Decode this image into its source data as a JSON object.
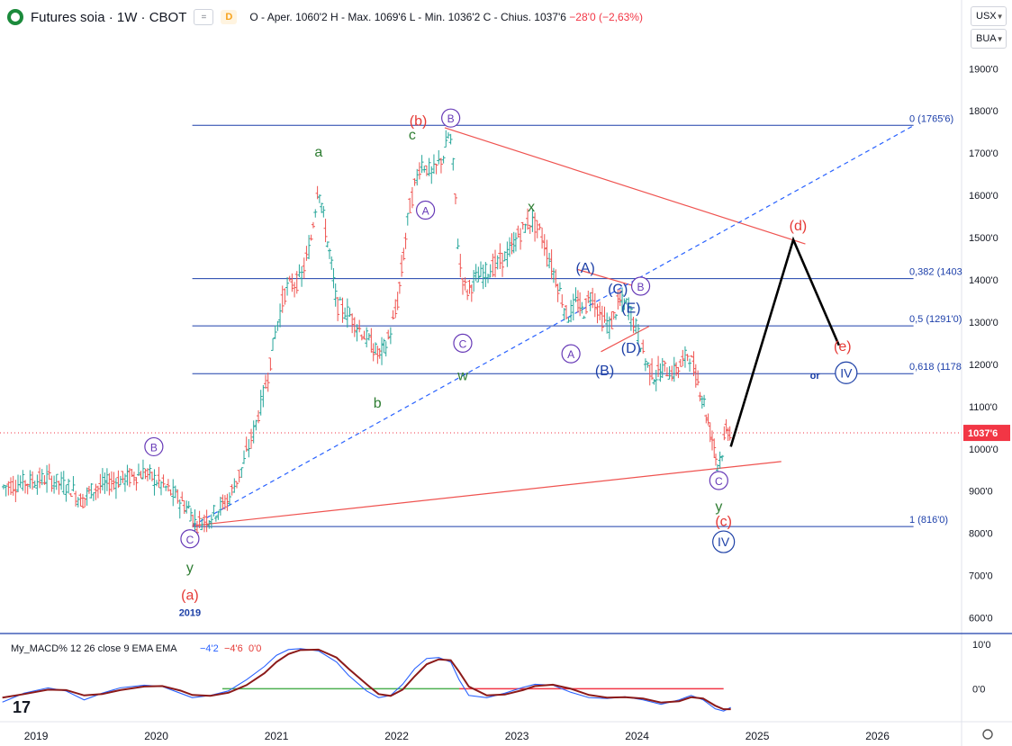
{
  "header": {
    "symbol": "Futures soia · 1W · CBOT",
    "eye_label": "=",
    "badge": "D",
    "ohlc_prefix": "O - Aper. 1060'2 H - Max. 1069'6 L - Min. 1036'2 C - Chius. 1037'6",
    "ohlc_change": "−28'0 (−2,63%)"
  },
  "controls": {
    "currency": "USX",
    "unit": "BUA"
  },
  "colors": {
    "up": "#26a69a",
    "down": "#ef5350",
    "purple": "#673ab7",
    "blue": "#1c3fa6",
    "green": "#2e7d32",
    "red": "#e53935",
    "fib": "#1c3faa",
    "macd": "#2962ff",
    "signal": "#8b1a1a"
  },
  "chart_data": {
    "type": "line",
    "title": "Futures soia · 1W · CBOT",
    "price_tick_labels": [
      "1900'0",
      "1800'0",
      "1700'0",
      "1600'0",
      "1500'0",
      "1400'0",
      "1300'0",
      "1200'0",
      "1100'0",
      "1000'0",
      "900'0",
      "800'0",
      "700'0",
      "600'0"
    ],
    "price_ticks": [
      1900,
      1800,
      1700,
      1600,
      1500,
      1400,
      1300,
      1200,
      1100,
      1000,
      900,
      800,
      700,
      600
    ],
    "ylim": [
      565,
      1990
    ],
    "xlim": [
      2018.7,
      2026.7
    ],
    "x_tick_labels": [
      "2019",
      "2020",
      "2021",
      "2022",
      "2023",
      "2024",
      "2025",
      "2026"
    ],
    "x_ticks": [
      2019,
      2020,
      2021,
      2022,
      2023,
      2024,
      2025,
      2026
    ],
    "last_price_label": "1037'6",
    "last_price": 1037.75,
    "price_path": [
      [
        2018.72,
        910
      ],
      [
        2018.9,
        920
      ],
      [
        2019.1,
        930
      ],
      [
        2019.3,
        905
      ],
      [
        2019.38,
        875
      ],
      [
        2019.45,
        900
      ],
      [
        2019.6,
        920
      ],
      [
        2019.75,
        930
      ],
      [
        2019.9,
        945
      ],
      [
        2020.05,
        915
      ],
      [
        2020.15,
        890
      ],
      [
        2020.28,
        855
      ],
      [
        2020.33,
        820
      ],
      [
        2020.45,
        840
      ],
      [
        2020.6,
        880
      ],
      [
        2020.72,
        960
      ],
      [
        2020.82,
        1050
      ],
      [
        2020.92,
        1160
      ],
      [
        2021.0,
        1290
      ],
      [
        2021.08,
        1380
      ],
      [
        2021.2,
        1400
      ],
      [
        2021.28,
        1480
      ],
      [
        2021.35,
        1630
      ],
      [
        2021.4,
        1530
      ],
      [
        2021.45,
        1450
      ],
      [
        2021.5,
        1340
      ],
      [
        2021.6,
        1320
      ],
      [
        2021.7,
        1280
      ],
      [
        2021.78,
        1250
      ],
      [
        2021.85,
        1220
      ],
      [
        2021.92,
        1250
      ],
      [
        2022.0,
        1330
      ],
      [
        2022.05,
        1440
      ],
      [
        2022.1,
        1560
      ],
      [
        2022.2,
        1680
      ],
      [
        2022.3,
        1650
      ],
      [
        2022.4,
        1700
      ],
      [
        2022.44,
        1755
      ],
      [
        2022.48,
        1640
      ],
      [
        2022.52,
        1440
      ],
      [
        2022.58,
        1370
      ],
      [
        2022.65,
        1400
      ],
      [
        2022.75,
        1420
      ],
      [
        2022.85,
        1440
      ],
      [
        2022.95,
        1470
      ],
      [
        2023.0,
        1500
      ],
      [
        2023.08,
        1530
      ],
      [
        2023.12,
        1540
      ],
      [
        2023.2,
        1510
      ],
      [
        2023.28,
        1440
      ],
      [
        2023.35,
        1380
      ],
      [
        2023.42,
        1310
      ],
      [
        2023.5,
        1350
      ],
      [
        2023.55,
        1320
      ],
      [
        2023.62,
        1370
      ],
      [
        2023.7,
        1310
      ],
      [
        2023.78,
        1290
      ],
      [
        2023.85,
        1350
      ],
      [
        2023.92,
        1340
      ],
      [
        2024.0,
        1280
      ],
      [
        2024.08,
        1200
      ],
      [
        2024.15,
        1170
      ],
      [
        2024.22,
        1190
      ],
      [
        2024.3,
        1180
      ],
      [
        2024.37,
        1200
      ],
      [
        2024.43,
        1230
      ],
      [
        2024.48,
        1180
      ],
      [
        2024.55,
        1120
      ],
      [
        2024.6,
        1050
      ],
      [
        2024.65,
        1000
      ],
      [
        2024.66,
        960
      ],
      [
        2024.7,
        985
      ],
      [
        2024.75,
        1050
      ],
      [
        2024.78,
        1037.75
      ]
    ],
    "projection": [
      [
        2024.78,
        1005
      ],
      [
        2025.3,
        1495
      ],
      [
        2025.68,
        1245
      ]
    ],
    "fib_levels": [
      {
        "label": "0 (1765'6)",
        "price": 1765.75
      },
      {
        "label": "0,382 (1403",
        "price": 1403
      },
      {
        "label": "0,5 (1291'0)",
        "price": 1291
      },
      {
        "label": "0,618 (1178",
        "price": 1178
      },
      {
        "label": "1 (816'0)",
        "price": 816
      }
    ],
    "fib_xrange": [
      2020.3,
      2026.3
    ],
    "trendlines": [
      {
        "style": "red",
        "from": [
          2022.4,
          1760
        ],
        "to": [
          2025.4,
          1485
        ]
      },
      {
        "style": "red",
        "from": [
          2020.3,
          818
        ],
        "to": [
          2025.2,
          970
        ]
      },
      {
        "style": "red",
        "from": [
          2023.5,
          1425
        ],
        "to": [
          2024.1,
          1375
        ]
      },
      {
        "style": "red",
        "from": [
          2023.7,
          1230
        ],
        "to": [
          2024.1,
          1290
        ]
      },
      {
        "style": "blue-dashed",
        "from": [
          2020.3,
          818
        ],
        "to": [
          2026.3,
          1765
        ]
      }
    ],
    "wave_labels": [
      {
        "text": "(b)",
        "style": "red",
        "x": 2022.18,
        "p": 1778
      },
      {
        "text": "B",
        "style": "circle-purple",
        "x": 2022.45,
        "p": 1783
      },
      {
        "text": "c",
        "style": "green",
        "x": 2022.13,
        "p": 1745
      },
      {
        "text": "a",
        "style": "green",
        "x": 2021.35,
        "p": 1705
      },
      {
        "text": "A",
        "style": "circle-purple",
        "x": 2022.24,
        "p": 1565
      },
      {
        "text": "x",
        "style": "green",
        "x": 2023.12,
        "p": 1575
      },
      {
        "text": "(A)",
        "style": "blue",
        "x": 2023.57,
        "p": 1430
      },
      {
        "text": "(C)",
        "style": "blue",
        "x": 2023.84,
        "p": 1380
      },
      {
        "text": "B",
        "style": "circle-purple",
        "x": 2024.03,
        "p": 1385
      },
      {
        "text": "(E)",
        "style": "blue",
        "x": 2023.95,
        "p": 1335
      },
      {
        "text": "(D)",
        "style": "blue",
        "x": 2023.95,
        "p": 1240
      },
      {
        "text": "(B)",
        "style": "blue",
        "x": 2023.73,
        "p": 1187
      },
      {
        "text": "A",
        "style": "circle-purple",
        "x": 2023.45,
        "p": 1225
      },
      {
        "text": "C",
        "style": "circle-purple",
        "x": 2022.55,
        "p": 1250
      },
      {
        "text": "w",
        "style": "green",
        "x": 2022.55,
        "p": 1175
      },
      {
        "text": "b",
        "style": "green",
        "x": 2021.84,
        "p": 1110
      },
      {
        "text": "B",
        "style": "circle-purple",
        "x": 2019.98,
        "p": 1005
      },
      {
        "text": "C",
        "style": "circle-purple",
        "x": 2020.28,
        "p": 787
      },
      {
        "text": "y",
        "style": "green",
        "x": 2020.28,
        "p": 720
      },
      {
        "text": "(a)",
        "style": "red",
        "x": 2020.28,
        "p": 655
      },
      {
        "text": "C",
        "style": "circle-purple",
        "x": 2024.68,
        "p": 925
      },
      {
        "text": "y",
        "style": "green",
        "x": 2024.68,
        "p": 865
      },
      {
        "text": "(c)",
        "style": "red",
        "x": 2024.72,
        "p": 830
      },
      {
        "text": "IV",
        "style": "circle-blue",
        "x": 2024.72,
        "p": 780
      },
      {
        "text": "(d)",
        "style": "red",
        "x": 2025.34,
        "p": 1530
      },
      {
        "text": "(e)",
        "style": "red",
        "x": 2025.71,
        "p": 1245
      },
      {
        "text": "or",
        "style": "blue-bold",
        "x": 2025.48,
        "p": 1178
      },
      {
        "text": "IV",
        "style": "circle-blue",
        "x": 2025.74,
        "p": 1180
      }
    ],
    "year_marker": {
      "text": "2019",
      "x": 2020.28,
      "p": 615
    },
    "indicator": {
      "name": "My_MACD% 12 26 close 9 EMA EMA",
      "values": [
        "−4'2",
        "−4'6",
        "0'0"
      ],
      "tick_labels": [
        "10'0",
        "0'0"
      ],
      "ticks": [
        10,
        0
      ],
      "ylim": [
        -7,
        12
      ],
      "macd": [
        [
          2018.72,
          -3
        ],
        [
          2018.9,
          -1
        ],
        [
          2019.1,
          0.2
        ],
        [
          2019.25,
          -0.5
        ],
        [
          2019.4,
          -2.5
        ],
        [
          2019.55,
          -1
        ],
        [
          2019.7,
          0.2
        ],
        [
          2019.9,
          0.8
        ],
        [
          2020.05,
          0.5
        ],
        [
          2020.2,
          -1
        ],
        [
          2020.3,
          -2
        ],
        [
          2020.45,
          -1.5
        ],
        [
          2020.6,
          -0.5
        ],
        [
          2020.75,
          2
        ],
        [
          2020.9,
          5
        ],
        [
          2021.0,
          7.5
        ],
        [
          2021.1,
          8.8
        ],
        [
          2021.2,
          9
        ],
        [
          2021.35,
          8.5
        ],
        [
          2021.5,
          6
        ],
        [
          2021.6,
          3
        ],
        [
          2021.75,
          -0.5
        ],
        [
          2021.85,
          -2
        ],
        [
          2021.95,
          -1.5
        ],
        [
          2022.05,
          1
        ],
        [
          2022.15,
          4.5
        ],
        [
          2022.25,
          6.8
        ],
        [
          2022.35,
          7
        ],
        [
          2022.45,
          6
        ],
        [
          2022.52,
          2
        ],
        [
          2022.6,
          -1.5
        ],
        [
          2022.75,
          -2
        ],
        [
          2022.9,
          -1
        ],
        [
          2023.05,
          0.3
        ],
        [
          2023.15,
          1
        ],
        [
          2023.3,
          0.8
        ],
        [
          2023.45,
          -0.8
        ],
        [
          2023.6,
          -2
        ],
        [
          2023.75,
          -2.2
        ],
        [
          2023.9,
          -1.8
        ],
        [
          2024.05,
          -2.5
        ],
        [
          2024.2,
          -3.5
        ],
        [
          2024.35,
          -2.5
        ],
        [
          2024.45,
          -1.5
        ],
        [
          2024.55,
          -2.5
        ],
        [
          2024.65,
          -4.5
        ],
        [
          2024.72,
          -5
        ],
        [
          2024.78,
          -4.2
        ]
      ],
      "signal": [
        [
          2018.72,
          -2
        ],
        [
          2018.9,
          -1.2
        ],
        [
          2019.1,
          -0.2
        ],
        [
          2019.25,
          -0.3
        ],
        [
          2019.4,
          -1.5
        ],
        [
          2019.55,
          -1.2
        ],
        [
          2019.7,
          -0.3
        ],
        [
          2019.9,
          0.5
        ],
        [
          2020.05,
          0.6
        ],
        [
          2020.2,
          -0.4
        ],
        [
          2020.3,
          -1.4
        ],
        [
          2020.45,
          -1.6
        ],
        [
          2020.6,
          -0.9
        ],
        [
          2020.75,
          0.8
        ],
        [
          2020.9,
          3.5
        ],
        [
          2021.0,
          6
        ],
        [
          2021.1,
          7.8
        ],
        [
          2021.2,
          8.7
        ],
        [
          2021.35,
          8.8
        ],
        [
          2021.5,
          7
        ],
        [
          2021.6,
          4.5
        ],
        [
          2021.75,
          1
        ],
        [
          2021.85,
          -1.2
        ],
        [
          2021.95,
          -1.6
        ],
        [
          2022.05,
          -0.2
        ],
        [
          2022.15,
          2.8
        ],
        [
          2022.25,
          5.5
        ],
        [
          2022.35,
          6.6
        ],
        [
          2022.45,
          6.4
        ],
        [
          2022.52,
          3.8
        ],
        [
          2022.6,
          0.5
        ],
        [
          2022.75,
          -1.5
        ],
        [
          2022.9,
          -1.3
        ],
        [
          2023.05,
          -0.3
        ],
        [
          2023.15,
          0.6
        ],
        [
          2023.3,
          0.9
        ],
        [
          2023.45,
          0
        ],
        [
          2023.6,
          -1.4
        ],
        [
          2023.75,
          -2
        ],
        [
          2023.9,
          -1.9
        ],
        [
          2024.05,
          -2.2
        ],
        [
          2024.2,
          -3.1
        ],
        [
          2024.35,
          -2.8
        ],
        [
          2024.45,
          -1.9
        ],
        [
          2024.55,
          -2.2
        ],
        [
          2024.65,
          -3.8
        ],
        [
          2024.72,
          -4.6
        ],
        [
          2024.78,
          -4.6
        ]
      ],
      "zero_segments": [
        {
          "color": "green",
          "from": 2020.55,
          "to": 2022.52
        },
        {
          "color": "red",
          "from": 2022.52,
          "to": 2024.72
        }
      ]
    }
  }
}
